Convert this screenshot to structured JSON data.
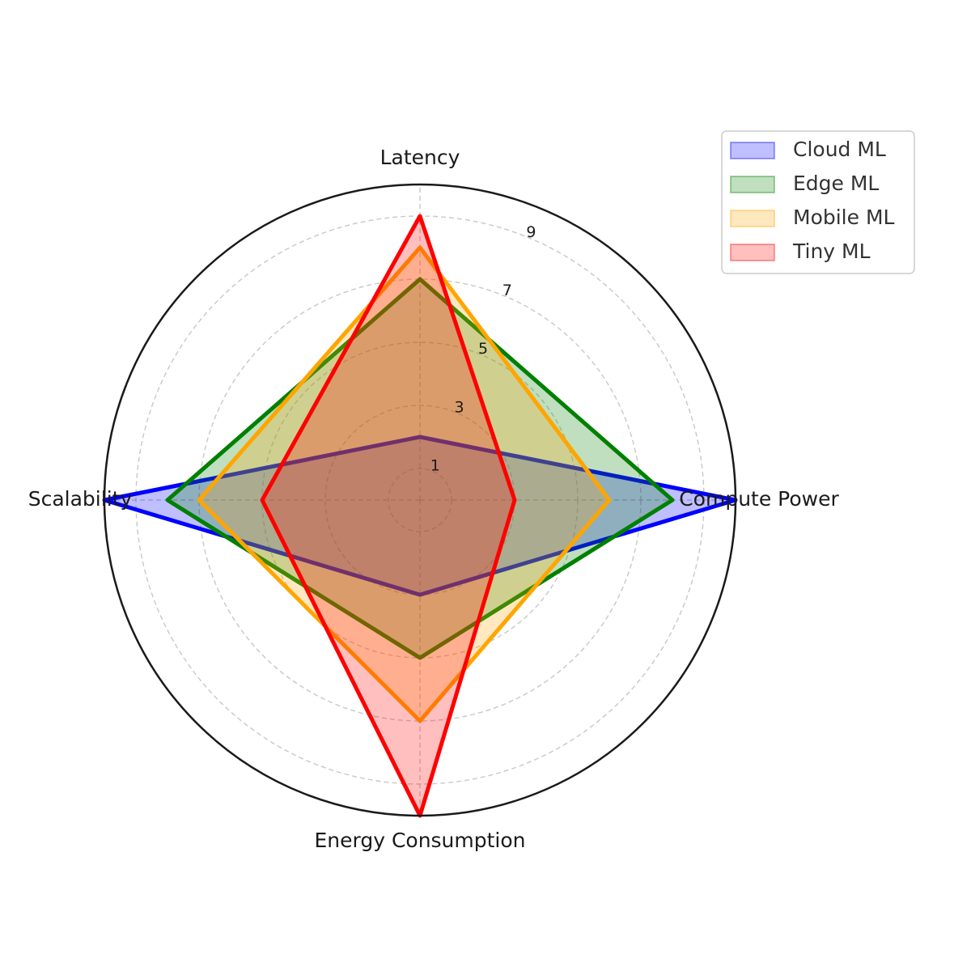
{
  "chart_data": {
    "type": "radar",
    "title": "",
    "axes": [
      "Latency",
      "Compute Power",
      "Energy Consumption",
      "Scalability"
    ],
    "r_ticks": [
      1,
      3,
      5,
      7,
      9
    ],
    "r_range": [
      0,
      10
    ],
    "grid": true,
    "legend_position": "top-right",
    "series": [
      {
        "name": "Cloud ML",
        "values": [
          2,
          10,
          3,
          10
        ],
        "color": "#0000ff"
      },
      {
        "name": "Edge ML",
        "values": [
          7,
          8,
          5,
          8
        ],
        "color": "#008000"
      },
      {
        "name": "Mobile ML",
        "values": [
          8,
          6,
          7,
          7
        ],
        "color": "#ffa500"
      },
      {
        "name": "Tiny ML",
        "values": [
          9,
          3,
          10,
          5
        ],
        "color": "#ff0000"
      }
    ]
  }
}
